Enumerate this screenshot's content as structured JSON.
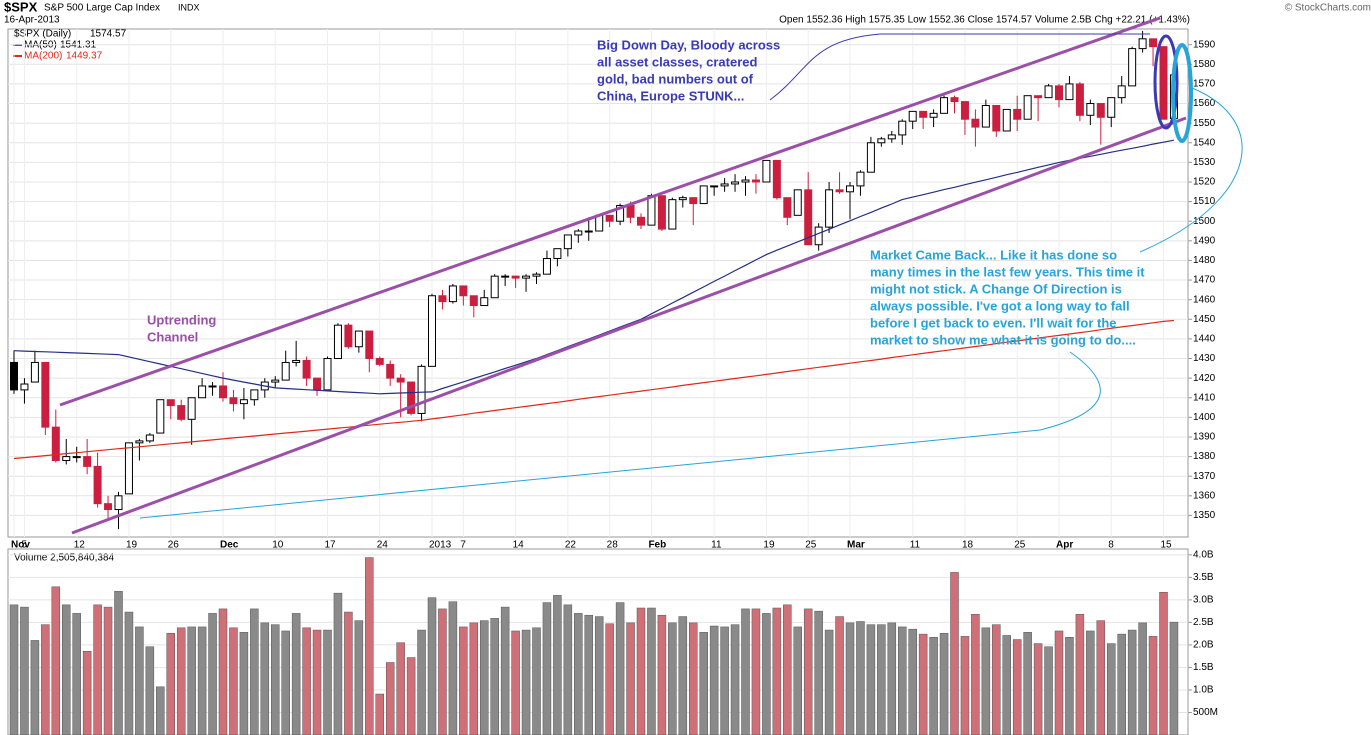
{
  "chart_data": [
    {
      "type": "candlestick",
      "title": "$SPX",
      "subtitle": "S&P 500 Large Cap Index",
      "exchange": "INDX",
      "date": "16-Apr-2013",
      "credit": "© StockCharts.com",
      "quote": "Open 1552.36  High 1575.35  Low 1552.36  Close 1574.57  Volume 2.5B  Chg +22.21 (+1.43%)",
      "series_label": "$SPX (Daily)",
      "categories": [
        "Nov",
        "5",
        null,
        null,
        null,
        null,
        "12",
        null,
        null,
        null,
        null,
        "19",
        null,
        null,
        null,
        "26",
        null,
        null,
        null,
        null,
        "Dec",
        null,
        null,
        null,
        null,
        "10",
        null,
        null,
        null,
        null,
        "17",
        null,
        null,
        null,
        null,
        "24",
        null,
        null,
        null,
        null,
        "2013",
        null,
        null,
        "7",
        null,
        null,
        null,
        null,
        "14",
        null,
        null,
        null,
        null,
        "22",
        null,
        null,
        null,
        "28",
        null,
        null,
        null,
        "Feb",
        null,
        null,
        null,
        null,
        null,
        "11",
        null,
        null,
        null,
        null,
        "19",
        null,
        null,
        null,
        "25",
        null,
        null,
        null,
        "Mar",
        null,
        null,
        null,
        null,
        null,
        "11",
        null,
        null,
        null,
        null,
        "18",
        null,
        null,
        null,
        null,
        "25",
        null,
        null,
        null,
        "Apr",
        null,
        null,
        null,
        null,
        "8",
        null,
        null,
        null,
        null,
        "15",
        null
      ],
      "open": [
        1428,
        1414,
        1418,
        1428,
        1395,
        1378,
        1380,
        1380,
        1375,
        1356,
        1353,
        1361,
        1387,
        1388,
        1392,
        1409,
        1406,
        1399,
        1410,
        1416,
        1416,
        1410,
        1407,
        1409,
        1414,
        1418,
        1419,
        1428,
        1429,
        1420,
        1414,
        1430,
        1447,
        1436,
        1444,
        1430,
        1427,
        1420,
        1418,
        1402,
        1426,
        1462,
        1459,
        1467,
        1462,
        1457,
        1461,
        1472,
        1472,
        1471,
        1472,
        1473,
        1481,
        1486,
        1493,
        1495,
        1495,
        1503,
        1500,
        1508,
        1502,
        1498,
        1513,
        1496,
        1511,
        1512,
        1509,
        1518,
        1518,
        1519,
        1520,
        1521,
        1520,
        1531,
        1512,
        1503,
        1516,
        1488,
        1497,
        1516,
        1515,
        1518,
        1525,
        1540,
        1542,
        1544,
        1551,
        1556,
        1553,
        1555,
        1563,
        1561,
        1552,
        1548,
        1559,
        1546,
        1557,
        1552,
        1564,
        1563,
        1569,
        1562,
        1570,
        1554,
        1560,
        1553,
        1563,
        1569,
        1588,
        1593,
        1589,
        1552.36
      ],
      "high": [
        1434,
        1420,
        1434,
        1428,
        1404,
        1389,
        1385,
        1389,
        1382,
        1360,
        1362,
        1387,
        1389,
        1392,
        1409,
        1409,
        1409,
        1410,
        1420,
        1418,
        1423,
        1414,
        1415,
        1414,
        1420,
        1421,
        1434,
        1439,
        1431,
        1420,
        1431,
        1448,
        1448,
        1444,
        1444,
        1431,
        1429,
        1422,
        1418,
        1427,
        1463,
        1465,
        1468,
        1467,
        1462,
        1465,
        1473,
        1473,
        1472,
        1473,
        1474,
        1485,
        1486,
        1493,
        1496,
        1502,
        1503,
        1503,
        1509,
        1510,
        1504,
        1514,
        1513,
        1512,
        1513,
        1512,
        1518,
        1518,
        1522,
        1524,
        1523,
        1524,
        1531,
        1531,
        1512,
        1516,
        1525,
        1499,
        1520,
        1525,
        1520,
        1526,
        1543,
        1543,
        1546,
        1552,
        1556,
        1556,
        1557,
        1564,
        1564,
        1561,
        1557,
        1562,
        1559,
        1557,
        1564,
        1564,
        1564,
        1570,
        1570,
        1574,
        1571,
        1562,
        1560,
        1563,
        1574,
        1589,
        1597,
        1593,
        1589,
        1575.35
      ],
      "low": [
        1412,
        1407,
        1418,
        1391,
        1377,
        1376,
        1377,
        1371,
        1354,
        1348,
        1343,
        1361,
        1378,
        1387,
        1392,
        1399,
        1398,
        1386,
        1410,
        1411,
        1408,
        1403,
        1399,
        1406,
        1410,
        1415,
        1419,
        1426,
        1416,
        1411,
        1414,
        1430,
        1435,
        1433,
        1423,
        1426,
        1416,
        1400,
        1401,
        1398,
        1426,
        1455,
        1458,
        1457,
        1451,
        1457,
        1461,
        1467,
        1466,
        1464,
        1468,
        1473,
        1477,
        1482,
        1489,
        1490,
        1495,
        1497,
        1498,
        1499,
        1496,
        1498,
        1495,
        1496,
        1507,
        1498,
        1509,
        1513,
        1515,
        1515,
        1513,
        1514,
        1520,
        1511,
        1498,
        1503,
        1488,
        1485,
        1494,
        1514,
        1501,
        1513,
        1525,
        1538,
        1540,
        1539,
        1547,
        1547,
        1548,
        1555,
        1555,
        1544,
        1538,
        1548,
        1543,
        1546,
        1546,
        1552,
        1551,
        1563,
        1558,
        1562,
        1551,
        1549,
        1539,
        1548,
        1560,
        1569,
        1586,
        1579,
        1552,
        1552.36
      ],
      "close": [
        1414,
        1417,
        1428,
        1395,
        1378,
        1380,
        1380,
        1375,
        1356,
        1353,
        1360,
        1387,
        1388,
        1391,
        1409,
        1406,
        1399,
        1410,
        1416,
        1416,
        1410,
        1407,
        1409,
        1414,
        1418,
        1419,
        1428,
        1429,
        1420,
        1414,
        1430,
        1447,
        1436,
        1444,
        1430,
        1427,
        1420,
        1418,
        1402,
        1426,
        1462,
        1459,
        1467,
        1462,
        1457,
        1461,
        1472,
        1472,
        1471,
        1472,
        1473,
        1481,
        1486,
        1493,
        1495,
        1495,
        1503,
        1500,
        1508,
        1502,
        1498,
        1513,
        1496,
        1511,
        1512,
        1509,
        1518,
        1518,
        1519,
        1520,
        1521,
        1520,
        1531,
        1512,
        1502,
        1516,
        1488,
        1497,
        1516,
        1515,
        1518,
        1525,
        1540,
        1542,
        1544,
        1551,
        1556,
        1553,
        1555,
        1563,
        1561,
        1552,
        1548,
        1559,
        1546,
        1557,
        1552,
        1564,
        1563,
        1569,
        1562,
        1570,
        1554,
        1560,
        1553,
        1563,
        1569,
        1588,
        1593,
        1589,
        1552,
        1574.57
      ],
      "up_color": "#000000",
      "down_color": "#cc1f3f",
      "overlays": [
        {
          "name": "MA(50)",
          "color": "#232e85",
          "values": [
            1434,
            1433.8,
            1433.6,
            1433.4,
            1433.2,
            1433,
            1432.8,
            1432.6,
            1432.4,
            1432.2,
            1432,
            1430.8,
            1429.6,
            1428.4,
            1427.2,
            1426,
            1424.8,
            1423.6,
            1422.4,
            1421.2,
            1420,
            1419,
            1418,
            1417,
            1416,
            1415,
            1414.7,
            1414.4,
            1414.1,
            1413.8,
            1413.5,
            1413.2,
            1412.9,
            1412.6,
            1412.3,
            1412,
            1412.2,
            1412.4,
            1412.6,
            1412.8,
            1413,
            1414.7,
            1416.4,
            1418.1,
            1419.8,
            1421.5,
            1423.2,
            1424.9,
            1426.6,
            1428.3,
            1430,
            1432,
            1434,
            1436,
            1438,
            1440,
            1442,
            1444,
            1446,
            1448,
            1450,
            1452.8,
            1455.5,
            1458.3,
            1461,
            1463.8,
            1466.5,
            1469.3,
            1472,
            1474.8,
            1477.5,
            1480.3,
            1483,
            1485.2,
            1487.3,
            1489.5,
            1491.6,
            1493.8,
            1495.9,
            1498.1,
            1500.2,
            1502.4,
            1504.5,
            1506.7,
            1508.8,
            1511,
            1512.3,
            1513.5,
            1514.8,
            1516.1,
            1517.3,
            1518.6,
            1519.9,
            1521.1,
            1522.4,
            1523.7,
            1524.9,
            1526.2,
            1527.5,
            1528.7,
            1530,
            1531,
            1532.1,
            1533.1,
            1534.1,
            1535.2,
            1536.2,
            1537.2,
            1538.2,
            1539.3,
            1540.3,
            1541.31
          ]
        },
        {
          "name": "MA(200)",
          "color": "#e0281c",
          "values": [
            1379,
            1379.5,
            1380,
            1380.5,
            1381,
            1381.5,
            1382,
            1382.5,
            1383,
            1383.5,
            1384,
            1384.5,
            1385,
            1385.5,
            1386,
            1386.5,
            1387,
            1387.5,
            1388,
            1388.5,
            1389,
            1389.5,
            1390,
            1390.5,
            1391,
            1391.5,
            1392,
            1392.5,
            1393,
            1393.5,
            1394,
            1394.5,
            1395,
            1395.5,
            1396,
            1396.5,
            1397,
            1397.5,
            1398,
            1398.5,
            1399.2,
            1399.9,
            1400.6,
            1401.3,
            1402.1,
            1402.8,
            1403.5,
            1404.2,
            1404.9,
            1405.6,
            1406.3,
            1407,
            1407.7,
            1408.4,
            1409.2,
            1409.9,
            1410.6,
            1411.3,
            1412,
            1412.7,
            1413.4,
            1414.1,
            1414.8,
            1415.5,
            1416.3,
            1417,
            1417.7,
            1418.4,
            1419.1,
            1419.8,
            1420.5,
            1421.2,
            1421.9,
            1422.6,
            1423.4,
            1424.1,
            1424.8,
            1425.5,
            1426.2,
            1426.9,
            1427.6,
            1428.3,
            1429,
            1429.7,
            1430.5,
            1431.2,
            1431.9,
            1432.6,
            1433.3,
            1434,
            1434.7,
            1435.4,
            1436.1,
            1436.8,
            1437.6,
            1438.3,
            1439,
            1439.7,
            1440.4,
            1441.1,
            1441.8,
            1442.5,
            1443.2,
            1443.9,
            1444.7,
            1445.4,
            1446.1,
            1446.8,
            1447.5,
            1448.2,
            1448.9,
            1449.37
          ]
        }
      ],
      "ylim": [
        1339,
        1598
      ],
      "yticks": [
        1350,
        1360,
        1370,
        1380,
        1390,
        1400,
        1410,
        1420,
        1430,
        1440,
        1450,
        1460,
        1470,
        1480,
        1490,
        1500,
        1510,
        1520,
        1530,
        1540,
        1550,
        1560,
        1570,
        1580,
        1590
      ],
      "grid": true,
      "annotations": [
        {
          "lines": [
            "Big Down Day, Bloody across",
            "all asset classes, cratered",
            "gold, bad numbers out of",
            "China, Europe STUNK..."
          ],
          "color": "#3a3ab4"
        },
        {
          "lines": [
            "Uptrending",
            "Channel"
          ],
          "color": "#9b4fa8"
        },
        {
          "lines": [
            "Market Came Back... Like it has done so",
            "many times in the last few years. This time it",
            "might not stick.  A Change Of Direction is",
            "always possible. I've got a long way to fall",
            "before I get back to even.  I'll wait for the",
            "market to show me what it is going to do...."
          ],
          "color": "#27a4da"
        }
      ]
    },
    {
      "type": "bar",
      "series_label": "Volume 2,505,840,384",
      "values": [
        2.89,
        2.84,
        2.1,
        2.45,
        3.29,
        2.89,
        2.7,
        1.86,
        2.89,
        2.84,
        3.19,
        2.73,
        2.4,
        1.96,
        1.07,
        2.26,
        2.38,
        2.4,
        2.4,
        2.7,
        2.8,
        2.38,
        2.28,
        2.8,
        2.49,
        2.45,
        2.31,
        2.7,
        2.38,
        2.33,
        2.33,
        3.15,
        2.73,
        2.54,
        3.94,
        0.91,
        1.61,
        2.05,
        1.72,
        2.33,
        3.05,
        2.8,
        2.96,
        2.4,
        2.49,
        2.54,
        2.59,
        2.84,
        2.31,
        2.33,
        2.38,
        2.94,
        3.1,
        2.89,
        2.7,
        2.66,
        2.63,
        2.47,
        2.94,
        2.49,
        2.82,
        2.82,
        2.66,
        2.49,
        2.63,
        2.49,
        2.28,
        2.42,
        2.4,
        2.45,
        2.8,
        2.8,
        2.7,
        2.82,
        2.89,
        2.4,
        2.8,
        2.75,
        2.33,
        2.63,
        2.49,
        2.52,
        2.45,
        2.45,
        2.49,
        2.4,
        2.35,
        2.24,
        2.17,
        2.26,
        3.61,
        2.19,
        2.68,
        2.38,
        2.45,
        2.21,
        2.12,
        2.28,
        2.03,
        1.96,
        2.31,
        2.17,
        2.68,
        2.31,
        2.54,
        2.03,
        2.24,
        2.33,
        2.49,
        2.19,
        3.17,
        2.505840384
      ],
      "up_color": "#8a8a8a",
      "down_color": "#cf6f78",
      "ylim": [
        0,
        4.13
      ],
      "yticks": [
        {
          "value": 0.5,
          "label": "500M"
        },
        {
          "value": 1,
          "label": "1.0B"
        },
        {
          "value": 1.5,
          "label": "1.5B"
        },
        {
          "value": 2,
          "label": "2.0B"
        },
        {
          "value": 2.5,
          "label": "2.5B"
        },
        {
          "value": 3,
          "label": "3.0B"
        },
        {
          "value": 3.5,
          "label": "3.5B"
        },
        {
          "value": 4,
          "label": "4.0B"
        }
      ],
      "grid": true
    }
  ]
}
